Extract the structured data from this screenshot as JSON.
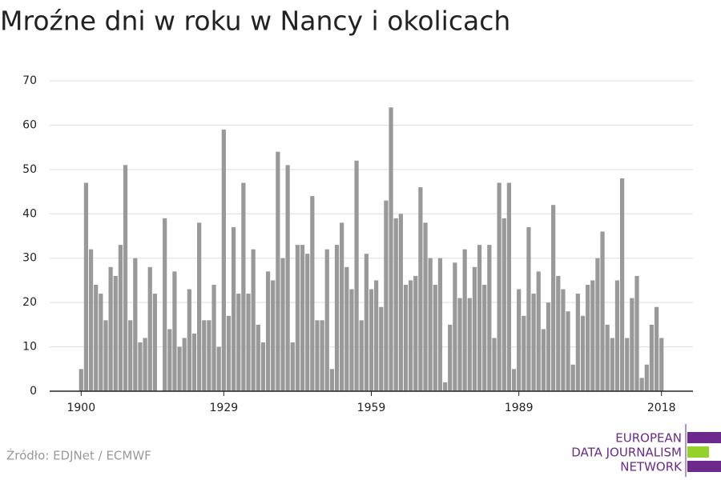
{
  "chart_data": {
    "type": "bar",
    "title": "Mroźne dni w roku w Nancy i okolicach",
    "source": "Źródło: EDJNet / ECMWF",
    "logo": [
      "EUROPEAN",
      "DATA JOURNALISM",
      "NETWORK"
    ],
    "x": [
      1900,
      1901,
      1902,
      1903,
      1904,
      1905,
      1906,
      1907,
      1908,
      1909,
      1910,
      1911,
      1912,
      1913,
      1914,
      1915,
      1916,
      1917,
      1918,
      1919,
      1920,
      1921,
      1922,
      1923,
      1924,
      1925,
      1926,
      1927,
      1928,
      1929,
      1930,
      1931,
      1932,
      1933,
      1934,
      1935,
      1936,
      1937,
      1938,
      1939,
      1940,
      1941,
      1942,
      1943,
      1944,
      1945,
      1946,
      1947,
      1948,
      1949,
      1950,
      1951,
      1952,
      1953,
      1954,
      1955,
      1956,
      1957,
      1958,
      1959,
      1960,
      1961,
      1962,
      1963,
      1964,
      1965,
      1966,
      1967,
      1968,
      1969,
      1970,
      1971,
      1972,
      1973,
      1974,
      1975,
      1976,
      1977,
      1978,
      1979,
      1980,
      1981,
      1982,
      1983,
      1984,
      1985,
      1986,
      1987,
      1988,
      1989,
      1990,
      1991,
      1992,
      1993,
      1994,
      1995,
      1996,
      1997,
      1998,
      1999,
      2000,
      2001,
      2002,
      2003,
      2004,
      2005,
      2006,
      2007,
      2008,
      2009,
      2010,
      2011,
      2012,
      2013,
      2014,
      2015,
      2016,
      2017,
      2018
    ],
    "values": [
      5,
      47,
      32,
      24,
      22,
      16,
      28,
      26,
      33,
      51,
      16,
      30,
      11,
      12,
      28,
      22,
      0,
      39,
      14,
      27,
      10,
      12,
      23,
      13,
      38,
      16,
      16,
      24,
      10,
      59,
      17,
      37,
      22,
      47,
      22,
      32,
      15,
      11,
      27,
      25,
      54,
      30,
      51,
      11,
      33,
      33,
      31,
      44,
      16,
      16,
      32,
      5,
      33,
      38,
      28,
      23,
      52,
      16,
      31,
      23,
      25,
      19,
      43,
      64,
      39,
      40,
      24,
      25,
      26,
      46,
      38,
      30,
      24,
      30,
      2,
      15,
      29,
      21,
      32,
      21,
      28,
      33,
      24,
      33,
      12,
      47,
      39,
      47,
      5,
      23,
      17,
      37,
      22,
      27,
      14,
      20,
      42,
      26,
      23,
      18,
      6,
      22,
      17,
      24,
      25,
      30,
      36,
      15,
      12,
      25,
      48,
      12,
      21,
      26,
      3,
      6,
      15,
      19,
      12
    ],
    "color": "#999999",
    "xlim": [
      1893.6,
      2024.4
    ],
    "xticks": [
      1900,
      1929,
      1959,
      1989,
      2018
    ],
    "ylim": [
      0,
      70
    ],
    "yticks": [
      0,
      10,
      20,
      30,
      40,
      50,
      60,
      70
    ],
    "grid": true
  }
}
